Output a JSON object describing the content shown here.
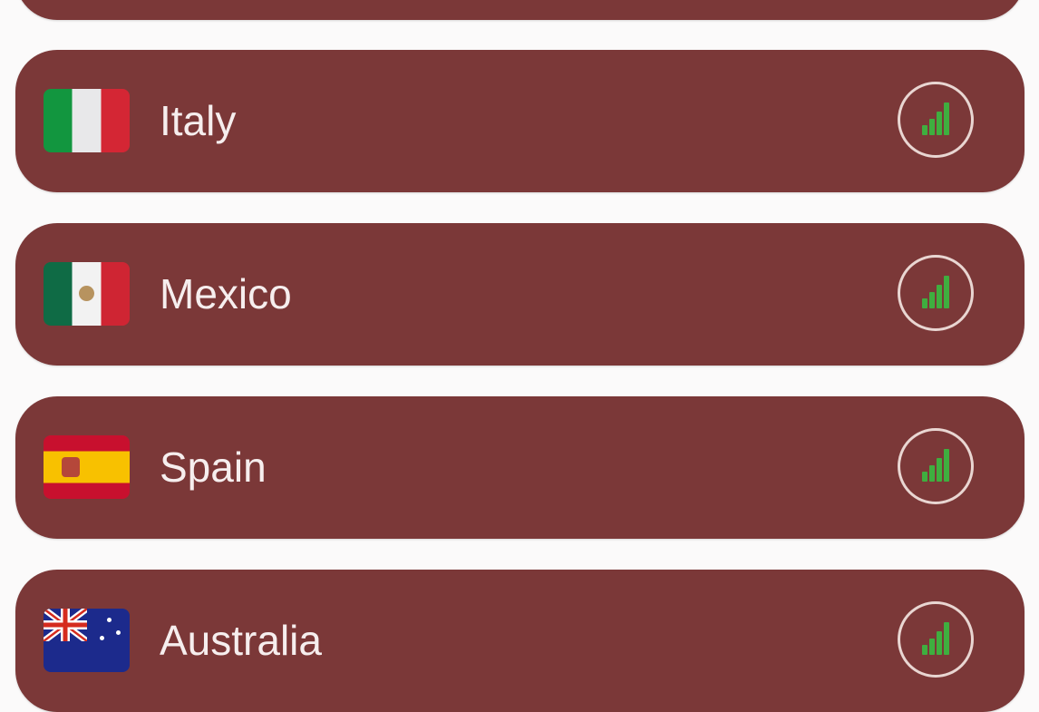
{
  "servers": [
    {
      "country": "Italy",
      "flag": "italy-flag",
      "signal_bars": 4
    },
    {
      "country": "Mexico",
      "flag": "mexico-flag",
      "signal_bars": 4
    },
    {
      "country": "Spain",
      "flag": "spain-flag",
      "signal_bars": 4
    },
    {
      "country": "Australia",
      "flag": "australia-flag",
      "signal_bars": 4
    }
  ],
  "colors": {
    "card": "#7b3838",
    "signal": "#3fae3f",
    "background": "#fbfafa"
  }
}
